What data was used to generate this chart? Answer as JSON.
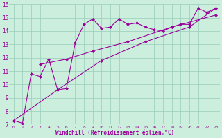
{
  "xlabel": "Windchill (Refroidissement éolien,°C)",
  "bg_color": "#cceedd",
  "line_color": "#990099",
  "grid_color": "#99ccbb",
  "xlim": [
    -0.5,
    23.5
  ],
  "ylim": [
    7,
    16
  ],
  "xticks": [
    0,
    1,
    2,
    3,
    4,
    5,
    6,
    7,
    8,
    9,
    10,
    11,
    12,
    13,
    14,
    15,
    16,
    17,
    18,
    19,
    20,
    21,
    22,
    23
  ],
  "yticks": [
    7,
    8,
    9,
    10,
    11,
    12,
    13,
    14,
    15,
    16
  ],
  "series1": [
    [
      0,
      7.3
    ],
    [
      1,
      7.1
    ],
    [
      2,
      10.8
    ],
    [
      3,
      10.6
    ],
    [
      4,
      11.9
    ],
    [
      5,
      9.6
    ],
    [
      6,
      9.7
    ],
    [
      7,
      13.1
    ],
    [
      8,
      14.5
    ],
    [
      9,
      14.9
    ],
    [
      10,
      14.2
    ],
    [
      11,
      14.3
    ],
    [
      12,
      14.9
    ],
    [
      13,
      14.5
    ],
    [
      14,
      14.6
    ],
    [
      15,
      14.3
    ],
    [
      16,
      14.1
    ],
    [
      17,
      14.0
    ],
    [
      18,
      14.3
    ],
    [
      19,
      14.5
    ],
    [
      20,
      14.5
    ],
    [
      21,
      15.7
    ],
    [
      22,
      15.4
    ],
    [
      23,
      15.7
    ]
  ],
  "series2": [
    [
      0,
      7.3
    ],
    [
      5,
      9.6
    ],
    [
      10,
      11.8
    ],
    [
      15,
      13.2
    ],
    [
      20,
      14.3
    ],
    [
      23,
      15.7
    ]
  ],
  "series3": [
    [
      3,
      11.5
    ],
    [
      6,
      11.9
    ],
    [
      9,
      12.5
    ],
    [
      13,
      13.2
    ],
    [
      18,
      14.3
    ],
    [
      23,
      15.2
    ]
  ],
  "marker": "D",
  "marker_size": 2,
  "line_width": 0.8
}
